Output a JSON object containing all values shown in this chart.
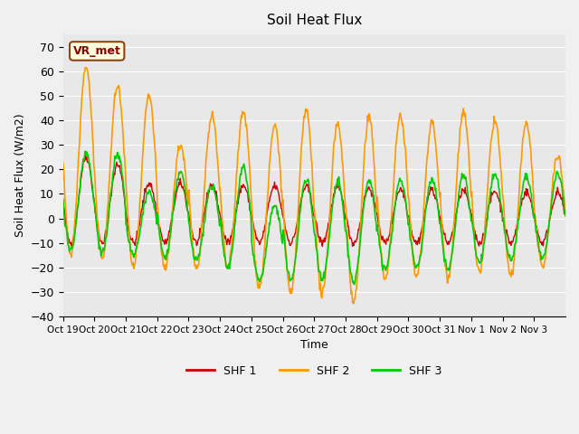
{
  "title": "Soil Heat Flux",
  "xlabel": "Time",
  "ylabel": "Soil Heat Flux (W/m2)",
  "ylim": [
    -40,
    75
  ],
  "yticks": [
    -40,
    -30,
    -20,
    -10,
    0,
    10,
    20,
    30,
    40,
    50,
    60,
    70
  ],
  "xtick_labels": [
    "Oct 19",
    "Oct 20",
    "Oct 21",
    "Oct 22",
    "Oct 23",
    "Oct 24",
    "Oct 25",
    "Oct 26",
    "Oct 27",
    "Oct 28",
    "Oct 29",
    "Oct 30",
    "Oct 31",
    "Nov 1",
    "Nov 2",
    "Nov 3"
  ],
  "color_shf1": "#cc0000",
  "color_shf2": "#ff9900",
  "color_shf3": "#00cc00",
  "legend_label1": "SHF 1",
  "legend_label2": "SHF 2",
  "legend_label3": "SHF 3",
  "annotation_text": "VR_met",
  "peaks2": [
    62,
    54,
    50,
    30,
    42,
    43,
    38,
    44,
    39,
    41,
    42,
    39,
    43,
    40,
    39,
    25
  ],
  "troughs2": [
    -15,
    -16,
    -20,
    -20,
    -20,
    -20,
    -28,
    -31,
    -31,
    -34,
    -25,
    -24,
    -24,
    -22,
    -24,
    -20
  ],
  "peaks3": [
    27,
    26,
    11,
    19,
    13,
    21,
    5,
    16,
    15,
    16,
    16,
    16,
    18,
    18,
    17,
    18
  ],
  "troughs3": [
    -13,
    -14,
    -15,
    -16,
    -17,
    -20,
    -25,
    -25,
    -25,
    -26,
    -21,
    -20,
    -21,
    -18,
    -17,
    -16
  ]
}
